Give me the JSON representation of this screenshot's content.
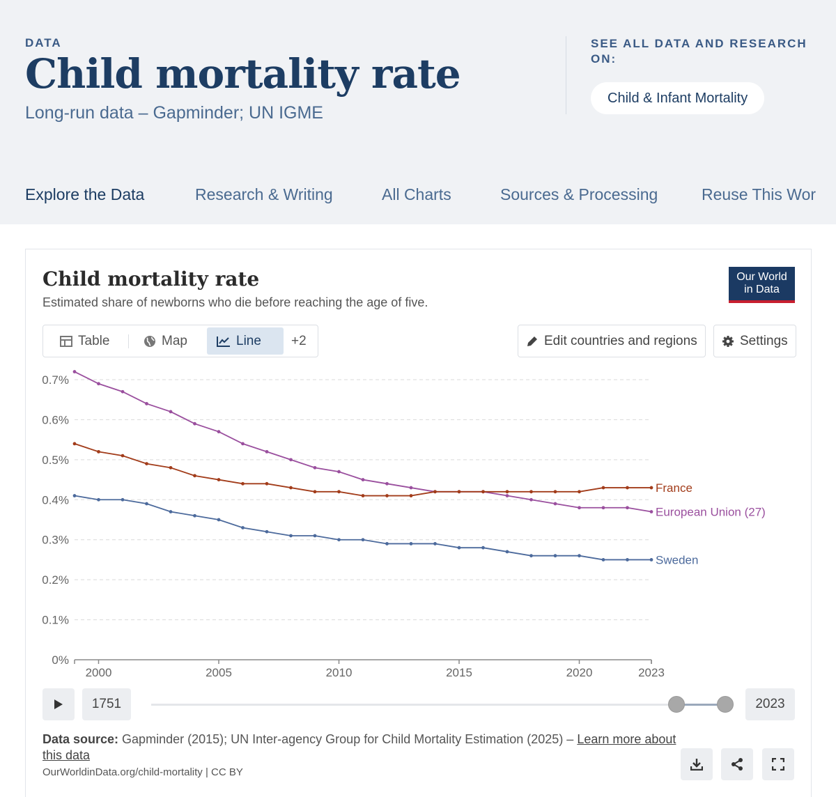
{
  "header": {
    "kicker": "DATA",
    "title": "Child mortality rate",
    "subtitle": "Long-run data – Gapminder; UN IGME",
    "see_all": "SEE ALL DATA AND RESEARCH ON:",
    "topic": "Child & Infant Mortality"
  },
  "nav": {
    "items": [
      {
        "label": "Explore the Data"
      },
      {
        "label": "Research & Writing"
      },
      {
        "label": "All Charts"
      },
      {
        "label": "Sources & Processing"
      },
      {
        "label": "Reuse This Wor"
      }
    ]
  },
  "card": {
    "title": "Child mortality rate",
    "subtitle": "Estimated share of newborns who die before reaching the age of five.",
    "logo_line1": "Our World",
    "logo_line2": "in Data",
    "tabs": {
      "table": "Table",
      "map": "Map",
      "line": "Line",
      "more": "+2"
    },
    "edit_button": "Edit countries and regions",
    "settings_button": "Settings",
    "timeline": {
      "start_year": "1751",
      "end_year": "2023"
    },
    "source_label": "Data source:",
    "source_text": " Gapminder (2015); UN Inter-agency Group for Child Mortality Estimation (2025) – ",
    "learn_more": "Learn more about this data",
    "url": "OurWorldinData.org/child-mortality | CC BY"
  },
  "chart_data": {
    "type": "line",
    "title": "Child mortality rate",
    "subtitle": "Estimated share of newborns who die before reaching the age of five.",
    "x": [
      1999,
      2000,
      2001,
      2002,
      2003,
      2004,
      2005,
      2006,
      2007,
      2008,
      2009,
      2010,
      2011,
      2012,
      2013,
      2014,
      2015,
      2016,
      2017,
      2018,
      2019,
      2020,
      2021,
      2022,
      2023
    ],
    "xlim": [
      1999,
      2023
    ],
    "ylim": [
      0,
      0.7
    ],
    "x_ticks": [
      "2000",
      "2005",
      "2010",
      "2015",
      "2020",
      "2023"
    ],
    "y_ticks": [
      "0%",
      "0.1%",
      "0.2%",
      "0.3%",
      "0.4%",
      "0.5%",
      "0.6%",
      "0.7%"
    ],
    "grid": "horizontal dashed",
    "legend": "inline labels at line ends",
    "colors": {
      "France": "#a23c1a",
      "European Union (27)": "#9a4f9e",
      "Sweden": "#4c6a9c"
    },
    "series": [
      {
        "name": "European Union (27)",
        "values": [
          0.72,
          0.69,
          0.67,
          0.64,
          0.62,
          0.59,
          0.57,
          0.54,
          0.52,
          0.5,
          0.48,
          0.47,
          0.45,
          0.44,
          0.43,
          0.42,
          0.42,
          0.42,
          0.41,
          0.4,
          0.39,
          0.38,
          0.38,
          0.38,
          0.37
        ]
      },
      {
        "name": "France",
        "values": [
          0.54,
          0.52,
          0.51,
          0.49,
          0.48,
          0.46,
          0.45,
          0.44,
          0.44,
          0.43,
          0.42,
          0.42,
          0.41,
          0.41,
          0.41,
          0.42,
          0.42,
          0.42,
          0.42,
          0.42,
          0.42,
          0.42,
          0.43,
          0.43,
          0.43
        ]
      },
      {
        "name": "Sweden",
        "values": [
          0.41,
          0.4,
          0.4,
          0.39,
          0.37,
          0.36,
          0.35,
          0.33,
          0.32,
          0.31,
          0.31,
          0.3,
          0.3,
          0.29,
          0.29,
          0.29,
          0.28,
          0.28,
          0.27,
          0.26,
          0.26,
          0.26,
          0.25,
          0.25,
          0.25
        ]
      }
    ]
  }
}
